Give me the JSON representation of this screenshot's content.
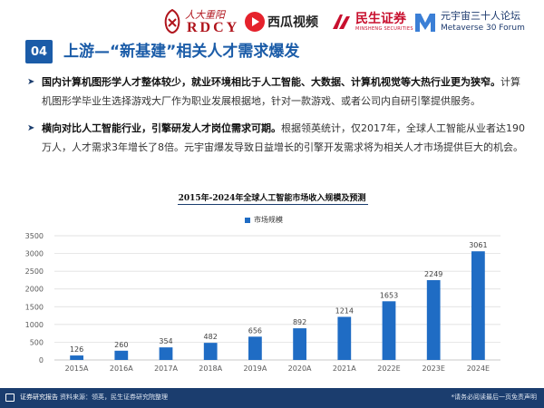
{
  "logos": {
    "rdcy_cn": "人大重阳",
    "rdcy_en": "RDCY",
    "xigua": "西瓜视频",
    "minsheng": "民生证券",
    "minsheng_en": "MINSHENG SECURITIES",
    "metaverse_cn": "元宇宙三十人论坛",
    "metaverse_en": "Metaverse 30 Forum"
  },
  "section": {
    "number": "04",
    "title": "上游—“新基建”相关人才需求爆发"
  },
  "bullets": [
    {
      "bold": "国内计算机图形学人才整体较少，就业环境相比于人工智能、大数据、计算机视觉等大热行业更为狭窄。",
      "text": "计算机图形学毕业生选择游戏大厂作为职业发展根据地，针对一款游戏、或者公司内自研引擎提供服务。"
    },
    {
      "bold": "横向对比人工智能行业，引擎研发人才岗位需求可期。",
      "text": "根据领英统计，仅2017年，全球人工智能从业者达190万人，人才需求3年增长了8倍。元宇宙爆发导致日益增长的引擎开发需求将为相关人才市场提供巨大的机会。"
    }
  ],
  "chart_data": {
    "type": "bar",
    "title": "2015年-2024年全球人工智能市场收入规模及预测",
    "categories": [
      "2015A",
      "2016A",
      "2017A",
      "2018A",
      "2019A",
      "2020A",
      "2021A",
      "2022E",
      "2023E",
      "2024E"
    ],
    "series": [
      {
        "name": "市场规模",
        "values": [
          126,
          260,
          354,
          482,
          656,
          892,
          1214,
          1653,
          2249,
          3061
        ]
      }
    ],
    "ylim": [
      0,
      3500
    ],
    "yticks": [
      0,
      500,
      1000,
      1500,
      2000,
      2500,
      3000,
      3500
    ],
    "grid": true,
    "legend": "top-center",
    "bar_color": "#1f6cc4"
  },
  "footer": {
    "left": "证券研究报告",
    "source": "资料来源：领英，民生证券研究院整理",
    "right": "*请务必阅读最后一页免责声明"
  },
  "colors": {
    "brand_blue": "#1b5ca8",
    "footer_navy": "#1b3d6e",
    "bar": "#1f6cc4"
  }
}
